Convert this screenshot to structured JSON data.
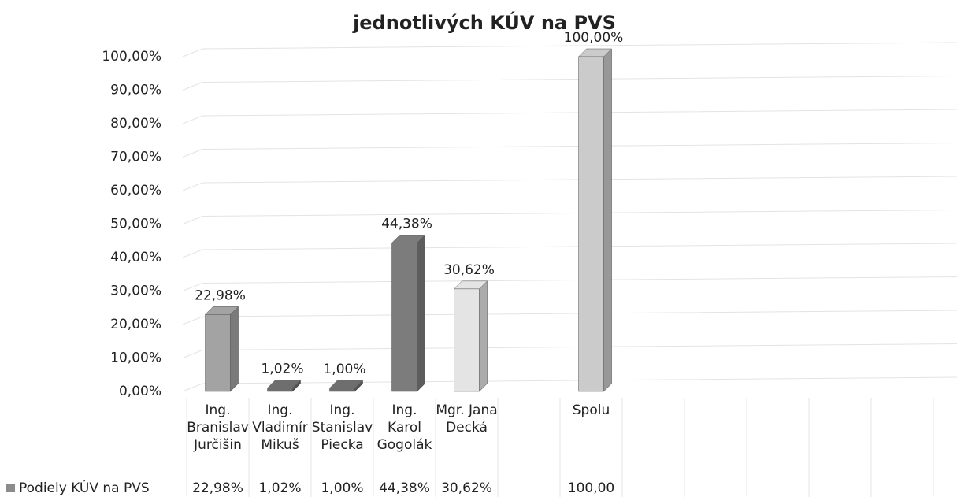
{
  "chart_data": {
    "type": "bar3d",
    "title": "jednotlivých KÚV na PVS",
    "categories": [
      "Ing. Branislav Jurčišin",
      "Ing. Vladimír Mikuš",
      "Ing. Stanislav Piecka",
      "Ing. Karol Gogolák",
      "Mgr. Jana Decká",
      null,
      "Spolu",
      null,
      null,
      null,
      null,
      null
    ],
    "series": [
      {
        "name": "Podiely KÚV na PVS",
        "color": "#8c8c8c",
        "colors": [
          "#a3a3a3",
          "#6e6e6e",
          "#6e6e6e",
          "#7c7c7c",
          "#e4e4e4",
          null,
          "#cbcbcb",
          null,
          null,
          null,
          null,
          null
        ],
        "values": [
          22.98,
          1.02,
          1.0,
          44.38,
          30.62,
          null,
          100,
          null,
          null,
          null,
          null,
          null
        ],
        "value_labels": [
          "22,98%",
          "1,02%",
          "1,00%",
          "44,38%",
          "30,62%",
          null,
          "100,00%",
          null,
          null,
          null,
          null,
          null
        ],
        "table_labels": [
          "22,98%",
          "1,02%",
          "1,00%",
          "44,38%",
          "30,62%",
          null,
          "100,00",
          null,
          null,
          null,
          null,
          null
        ]
      }
    ],
    "ylim": [
      0,
      100
    ],
    "yticks": [
      {
        "value": 0,
        "label": "0,00%"
      },
      {
        "value": 10,
        "label": "10,00%"
      },
      {
        "value": 20,
        "label": "20,00%"
      },
      {
        "value": 30,
        "label": "30,00%"
      },
      {
        "value": 40,
        "label": "40,00%"
      },
      {
        "value": 50,
        "label": "50,00%"
      },
      {
        "value": 60,
        "label": "60,00%"
      },
      {
        "value": 70,
        "label": "70,00%"
      },
      {
        "value": 80,
        "label": "80,00%"
      },
      {
        "value": 90,
        "label": "90,00%"
      },
      {
        "value": 100,
        "label": "100,00%"
      }
    ],
    "grid": true
  }
}
